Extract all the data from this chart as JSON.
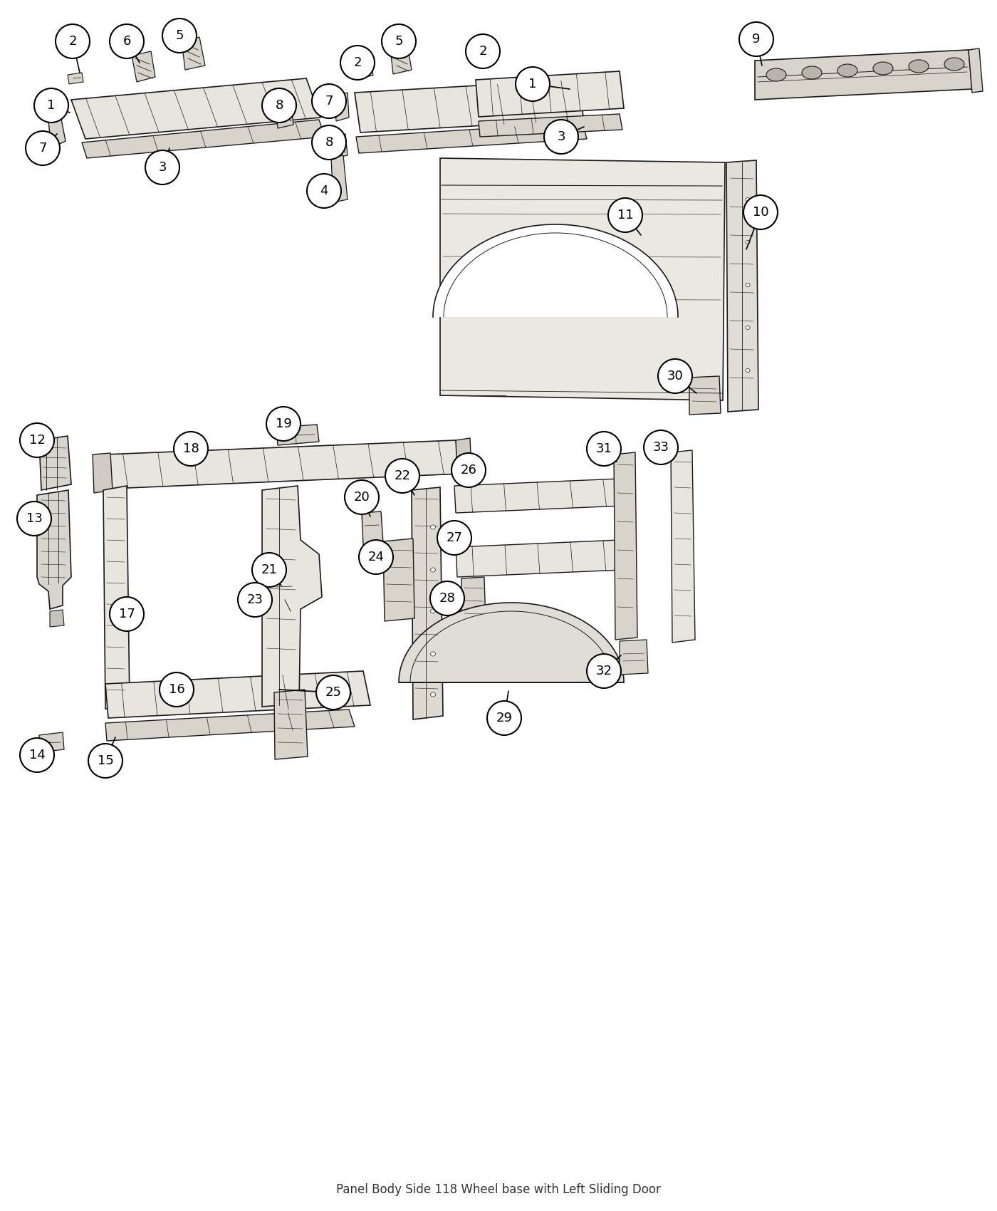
{
  "title": "Panel Body Side 118 Wheel base with Left Sliding Door",
  "background_color": "#ffffff",
  "fig_width": 14.0,
  "fig_height": 17.0,
  "line_color": "#1a1a1a",
  "fill_light": "#e8e5de",
  "fill_mid": "#d8d4cc",
  "fill_dark": "#c8c4bc"
}
